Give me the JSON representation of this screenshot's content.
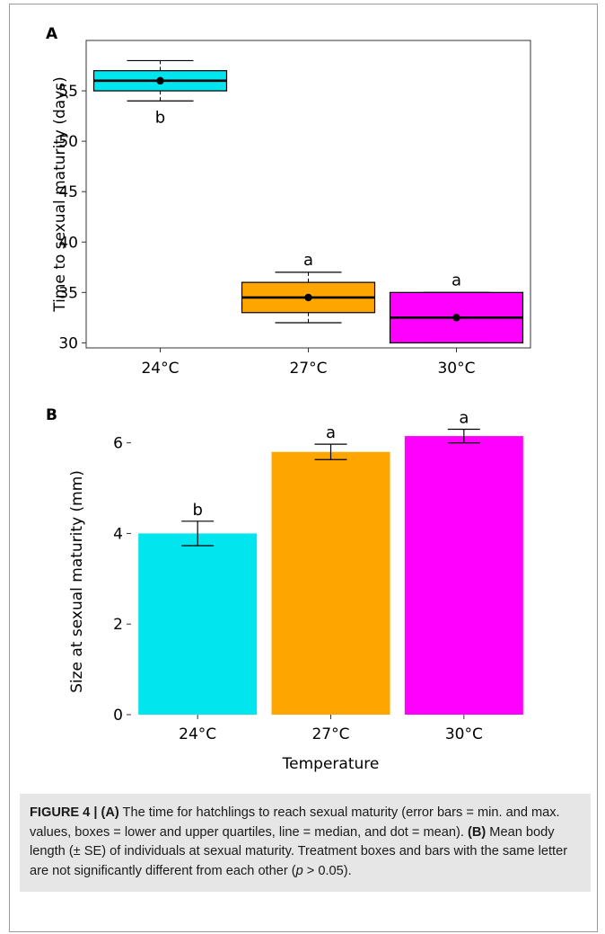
{
  "panels": [
    {
      "letter": "A",
      "chart_data": {
        "type": "box",
        "categories": [
          "24°C",
          "27°C",
          "30°C"
        ],
        "ylabel": "Time to sexual maturity (days)",
        "xlabel": "",
        "ylim": [
          29.5,
          60
        ],
        "yticks": [
          30,
          35,
          40,
          45,
          50,
          55
        ],
        "grid": false,
        "boxes": [
          {
            "min": 54,
            "q1": 55,
            "median": 56,
            "q3": 57,
            "max": 58,
            "mean": 56,
            "letter": "b",
            "color": "#00e5ee"
          },
          {
            "min": 32,
            "q1": 33,
            "median": 34.5,
            "q3": 36,
            "max": 37,
            "mean": 34.5,
            "letter": "a",
            "color": "#ffa500"
          },
          {
            "min": 30,
            "q1": 30,
            "median": 32.5,
            "q3": 35,
            "max": 35,
            "mean": 32.5,
            "letter": "a",
            "color": "#ff00ff"
          }
        ]
      }
    },
    {
      "letter": "B",
      "chart_data": {
        "type": "bar",
        "categories": [
          "24°C",
          "27°C",
          "30°C"
        ],
        "ylabel": "Size at sexual maturity (mm)",
        "xlabel": "Temperature",
        "ylim": [
          0,
          6.35
        ],
        "yticks": [
          0,
          2,
          4,
          6
        ],
        "grid": false,
        "values": [
          4.0,
          5.8,
          6.15
        ],
        "se": [
          0.27,
          0.17,
          0.15
        ],
        "letters": [
          "b",
          "a",
          "a"
        ],
        "colors": [
          "#00e5ee",
          "#ffa500",
          "#ff00ff"
        ]
      }
    }
  ],
  "caption": {
    "label": "FIGURE 4 | ",
    "part_a_tag": "(A)",
    "part_a_text": " The time for hatchlings to reach sexual maturity (error bars = min. and max. values, boxes = lower and upper quartiles, line = median, and dot = mean). ",
    "part_b_tag": "(B)",
    "part_b_text_1": " Mean body length (± SE) of individuals at sexual maturity. Treatment boxes and bars with the same letter are not significantly different from each other (",
    "p_symbol": "p",
    "part_b_text_2": " > 0.05)."
  }
}
